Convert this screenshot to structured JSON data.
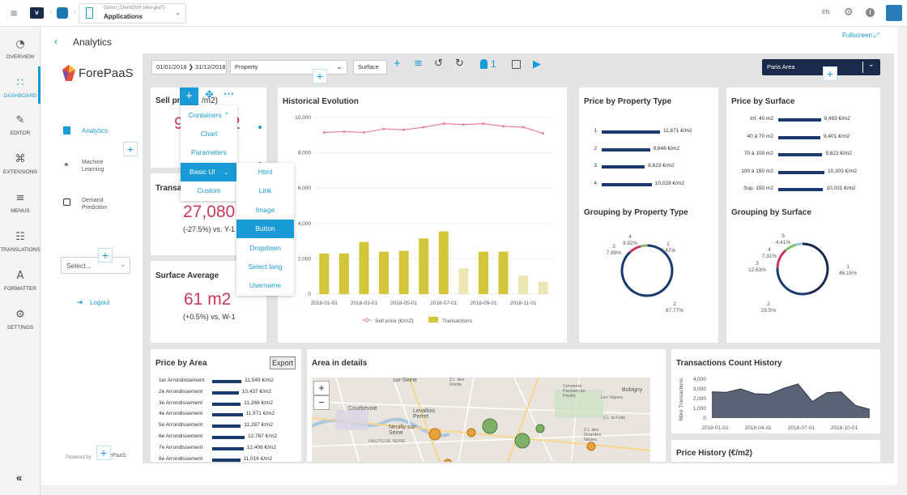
{
  "topbar": {
    "workspace": "Demo | DemOVH (eks-graT)",
    "app": "Applications",
    "lang": "EN"
  },
  "sidebar": {
    "items": [
      {
        "label": "OVERVIEW",
        "icon": "◔"
      },
      {
        "label": "DASHBOARD",
        "icon": "∷"
      },
      {
        "label": "EDITOR",
        "icon": "✎"
      },
      {
        "label": "EXTENSIONS",
        "icon": "⌘"
      },
      {
        "label": "MENUS",
        "icon": "≡"
      },
      {
        "label": "TRANSLATIONS",
        "icon": "☷"
      },
      {
        "label": "FORMATTER",
        "icon": "A"
      },
      {
        "label": "SETTINGS",
        "icon": "⚙"
      }
    ]
  },
  "header": {
    "title": "Analytics",
    "fullscreen": "Fullscreen"
  },
  "left": {
    "brand": "ForePaaS",
    "nav": [
      {
        "label": "Analytics"
      },
      {
        "label": "Machine Learning"
      },
      {
        "label": "Demand Prediction"
      }
    ],
    "select_placeholder": "Select...",
    "logout": "Logout",
    "powered": "Powered by"
  },
  "toolbar": {
    "date": "01/01/2018 ❯ 31/12/2018",
    "property": "Property",
    "surface": "Surface",
    "count": "1",
    "area": "Paris Area"
  },
  "menu": {
    "main": [
      "Containers ⌃",
      "Chart",
      "Parameters",
      "Basic UI",
      "Custom"
    ],
    "sub": [
      "Html",
      "Link",
      "Image",
      "Button",
      "Dropdown",
      "Select lang",
      "Username"
    ]
  },
  "kpis": {
    "sell_title": "Sell pri",
    "sell_tail": "/m2)",
    "sell_value": "9",
    "sell_value_tail": "2",
    "trans_title": "Transa",
    "trans_value": "27,080",
    "trans_sub": "(-27.5%) vs. Y-1",
    "surf_title": "Surface Average",
    "surf_value": "61 m2",
    "surf_sub": "(+0.5%) vs. W-1"
  },
  "historical": {
    "title": "Historical Evolution",
    "legend1": "Sell price (€/m2)",
    "legend2": "Transactions"
  },
  "chart_data": [
    {
      "type": "bar",
      "title": "Historical Evolution",
      "x": [
        "2018-01-01",
        "2018-02-01",
        "2018-03-01",
        "2018-04-01",
        "2018-05-01",
        "2018-06-01",
        "2018-07-01",
        "2018-08-01",
        "2018-09-01",
        "2018-10-01",
        "2018-11-01",
        "2018-12-01"
      ],
      "xticks": [
        "2018-01-01",
        "2018-03-01",
        "2018-05-01",
        "2018-07-01",
        "2018-09-01",
        "2018-11-01"
      ],
      "ylim": [
        0,
        10000
      ],
      "yticks": [
        "0",
        "2,000",
        "4,000",
        "6,000",
        "8,000",
        "10,000"
      ],
      "series": [
        {
          "name": "Sell price (€/m2)",
          "kind": "line",
          "values": [
            9150,
            9200,
            9150,
            9350,
            9300,
            9450,
            9650,
            9600,
            9650,
            9500,
            9450,
            9100
          ]
        },
        {
          "name": "Transactions",
          "kind": "bar",
          "values": [
            2300,
            2300,
            2950,
            2400,
            2450,
            3150,
            3550,
            1450,
            2400,
            2400,
            1050,
            700
          ]
        }
      ]
    },
    {
      "type": "bar",
      "title": "Price by Property Type",
      "categories": [
        "1",
        "2",
        "3",
        "4"
      ],
      "values": [
        11671,
        9648,
        8623,
        10028
      ],
      "labels": [
        "11,671 €/m2",
        "9,648 €/m2",
        "8,623 €/m2",
        "10,028 €/m2"
      ]
    },
    {
      "type": "bar",
      "title": "Price by Surface",
      "categories": [
        "Inf. 40 m2",
        "40 à 70 m2",
        "70 à 100 m2",
        "100 à 150 m2",
        "Sup. 150 m2"
      ],
      "values": [
        9493,
        9401,
        9822,
        10303,
        10031
      ],
      "labels": [
        "9,493 €/m2",
        "9,401 €/m2",
        "9,822 €/m2",
        "10,303 €/m2",
        "10,031 €/m2"
      ]
    },
    {
      "type": "pie",
      "title": "Grouping by Property Type",
      "categories": [
        "1",
        "2",
        "3",
        "4"
      ],
      "values": [
        0.42,
        87.77,
        7.89,
        3.92
      ],
      "labels": [
        "0.42%",
        "87.77%",
        "7.89%",
        "3.92%"
      ],
      "colors": [
        "#c9385b",
        "#1a3a6e",
        "#c9385b",
        "#7dc16b"
      ]
    },
    {
      "type": "pie",
      "title": "Grouping by Surface",
      "categories": [
        "1",
        "2",
        "3",
        "4",
        "5"
      ],
      "values": [
        46.15,
        29.5,
        12.63,
        7.31,
        4.41
      ],
      "labels": [
        "46.15%",
        "29.5%",
        "12.63%",
        "7.31%",
        "4.41%"
      ],
      "colors": [
        "#1a2a4a",
        "#1a3a6e",
        "#c9385b",
        "#7dc16b",
        "#8fc7e0"
      ]
    },
    {
      "type": "bar",
      "title": "Price by Area",
      "categories": [
        "1er Arrondissement",
        "2e Arrondissement",
        "3e Arrondissement",
        "4e Arrondissement",
        "5e Arrondissement",
        "6e Arrondissement",
        "7e Arrondissement",
        "8e Arrondissement"
      ],
      "values": [
        11549,
        10437,
        11268,
        11971,
        11287,
        12767,
        12406,
        11016
      ],
      "labels": [
        "11,549 €/m2",
        "10,437 €/m2",
        "11,268 €/m2",
        "11,971 €/m2",
        "11,287 €/m2",
        "12,767 €/m2",
        "12,406 €/m2",
        "11,016 €/m2"
      ]
    },
    {
      "type": "area",
      "title": "Transactions Count History",
      "ylabel": "Nbre Transactions",
      "yticks": [
        "0",
        "1,000",
        "2,000",
        "3,000",
        "4,000"
      ],
      "xticks": [
        "2018-01-01",
        "2018-04-01",
        "2018-07-01",
        "2018-10-01"
      ],
      "x": [
        "2018-01",
        "2018-02",
        "2018-03",
        "2018-04",
        "2018-05",
        "2018-06",
        "2018-07",
        "2018-08",
        "2018-09",
        "2018-10",
        "2018-11",
        "2018-12"
      ],
      "values": [
        2700,
        2650,
        3000,
        2500,
        2450,
        3050,
        3500,
        1700,
        2600,
        2700,
        1300,
        900
      ],
      "ylim": [
        0,
        4000
      ]
    }
  ],
  "cards": {
    "price_area": "Price by Area",
    "export": "Export",
    "area_details": "Area in details",
    "trans_count": "Transactions Count History",
    "price_history": "Price History (€/m2)",
    "grouping_type": "Grouping by Property Type",
    "grouping_surface": "Grouping by Surface",
    "price_prop": "Price by Property Type",
    "price_surf": "Price by Surface"
  },
  "map": {
    "labels": [
      "sur-Seine",
      "Z.I. des Docks",
      "Cimetiere Parisien de Pantin",
      "Bobigny",
      "Les Vignes",
      "Courbevoie",
      "Levallois Perret",
      "Neuilly sur-Seine",
      "Paris",
      "HAUTS DE SEINE",
      "Z.I. des Grandes Noues",
      "Z.I. la Folie"
    ]
  }
}
